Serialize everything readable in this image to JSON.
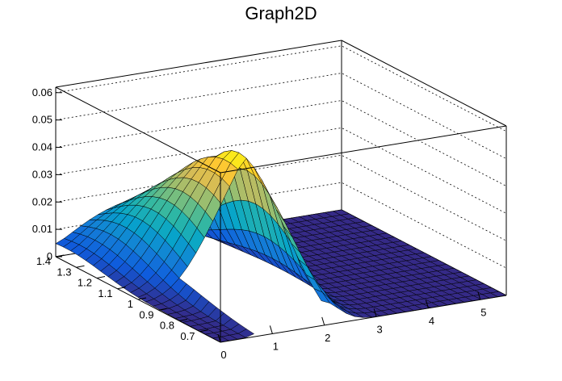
{
  "chart_data": {
    "type": "surface",
    "title": "Graph2D",
    "xlabel": "",
    "ylabel": "",
    "zlabel": "",
    "x_range": [
      0,
      5.5
    ],
    "y_range": [
      0.6,
      1.4
    ],
    "z_range": [
      0,
      0.062
    ],
    "x_ticks": [
      "0",
      "1",
      "2",
      "3",
      "4",
      "5"
    ],
    "y_ticks": [
      "1.4",
      "1.3",
      "1.2",
      "1.1",
      "1",
      "0.9",
      "0.8",
      "0.7"
    ],
    "z_ticks": [
      "0",
      "0.01",
      "0.02",
      "0.03",
      "0.04",
      "0.05",
      "0.06"
    ],
    "grid": true,
    "palette": [
      "#352a87",
      "#0f5cdd",
      "#1481d6",
      "#06a4ca",
      "#2eb7a4",
      "#87bf77",
      "#d1bb59",
      "#fec832",
      "#f9fb0e"
    ],
    "surface_features": {
      "peak": {
        "x": 1.9,
        "y": 1.0,
        "z": 0.048
      },
      "ridge_start": {
        "x": 0.0,
        "y": 1.35,
        "z": 0.005
      },
      "floor_value": 0.0,
      "empty_region": {
        "x_from": 0.75,
        "x_to": 1.85,
        "y_from": 0.6,
        "y_to": 0.95
      }
    }
  }
}
